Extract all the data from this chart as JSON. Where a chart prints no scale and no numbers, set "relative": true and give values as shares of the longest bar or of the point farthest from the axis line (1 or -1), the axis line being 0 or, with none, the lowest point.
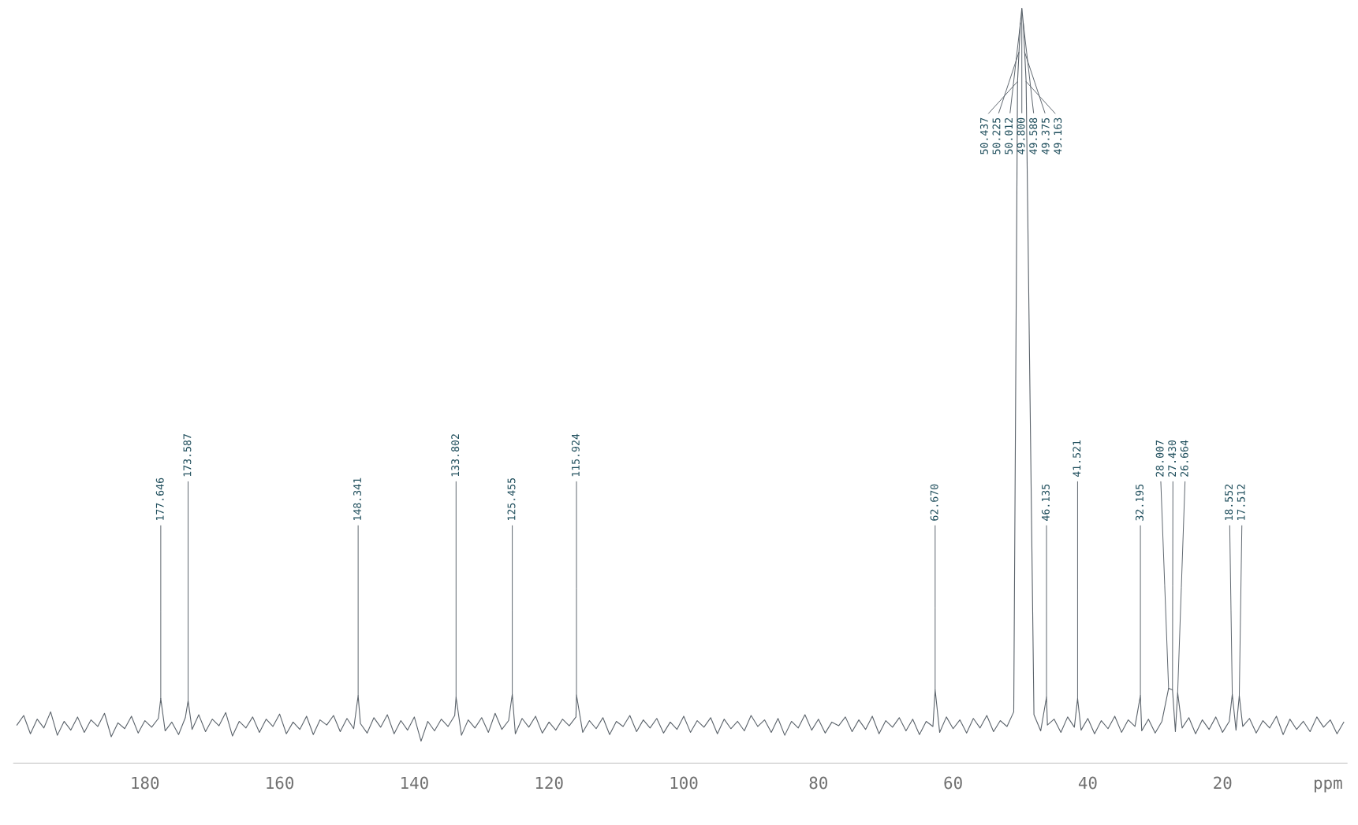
{
  "chart_data": {
    "type": "line",
    "relative": true,
    "xlabel": "ppm",
    "xlim": [
      199.5,
      1.5
    ],
    "xticks": [
      180,
      160,
      140,
      120,
      100,
      80,
      60,
      40,
      20
    ],
    "tick_labels": "x",
    "grid": false,
    "marker": "none",
    "line_style": "solid",
    "series": [
      {
        "color": "#5b636b",
        "x": [
          199,
          198,
          197,
          196,
          195,
          194,
          193,
          192,
          191,
          190,
          189,
          188,
          187,
          186,
          185,
          184,
          183,
          182,
          181,
          180,
          179,
          178,
          177.646,
          177,
          176,
          175,
          174,
          173.587,
          173,
          172,
          171,
          170,
          169,
          168,
          167,
          166,
          165,
          164,
          163,
          162,
          161,
          160,
          159,
          158,
          157,
          156,
          155,
          154,
          153,
          152,
          151,
          150,
          149,
          148.341,
          148,
          147,
          146,
          145,
          144,
          143,
          142,
          141,
          140,
          139,
          138,
          137,
          136,
          135,
          134,
          133.802,
          133,
          132,
          131,
          130,
          129,
          128,
          127,
          126,
          125.455,
          125,
          124,
          123,
          122,
          121,
          120,
          119,
          118,
          117,
          116,
          115.924,
          115,
          114,
          113,
          112,
          111,
          110,
          109,
          108,
          107,
          106,
          105,
          104,
          103,
          102,
          101,
          100,
          99,
          98,
          97,
          96,
          95,
          94,
          93,
          92,
          91,
          90,
          89,
          88,
          87,
          86,
          85,
          84,
          83,
          82,
          81,
          80,
          79,
          78,
          77,
          76,
          75,
          74,
          73,
          72,
          71,
          70,
          69,
          68,
          67,
          66,
          65,
          64,
          63,
          62.67,
          62,
          61,
          60,
          59,
          58,
          57,
          56,
          55,
          54,
          53,
          52,
          51,
          50.437,
          50.225,
          50.012,
          49.8,
          49.588,
          49.375,
          49.163,
          48,
          47,
          46.135,
          46,
          45,
          44,
          43,
          42,
          41.521,
          41,
          40,
          39,
          38,
          37,
          36,
          35,
          34,
          33,
          32.195,
          32,
          31,
          30,
          29,
          28.007,
          27.43,
          27,
          26.664,
          26,
          25,
          24,
          23,
          22,
          21,
          20,
          19,
          18.552,
          18,
          17.512,
          17,
          16,
          15,
          14,
          13,
          12,
          11,
          10,
          9,
          8,
          7,
          6,
          5,
          4,
          3,
          2
        ],
        "values": [
          0.022,
          0.035,
          0.01,
          0.03,
          0.018,
          0.04,
          0.008,
          0.027,
          0.015,
          0.033,
          0.012,
          0.029,
          0.02,
          0.038,
          0.006,
          0.025,
          0.017,
          0.034,
          0.011,
          0.028,
          0.019,
          0.031,
          0.058,
          0.014,
          0.026,
          0.009,
          0.032,
          0.055,
          0.016,
          0.036,
          0.013,
          0.03,
          0.021,
          0.039,
          0.007,
          0.027,
          0.018,
          0.033,
          0.012,
          0.03,
          0.02,
          0.037,
          0.01,
          0.026,
          0.016,
          0.034,
          0.009,
          0.029,
          0.022,
          0.035,
          0.013,
          0.031,
          0.017,
          0.062,
          0.024,
          0.011,
          0.032,
          0.019,
          0.036,
          0.01,
          0.028,
          0.015,
          0.033,
          0.0,
          0.027,
          0.014,
          0.03,
          0.02,
          0.035,
          0.06,
          0.008,
          0.029,
          0.018,
          0.032,
          0.012,
          0.038,
          0.016,
          0.028,
          0.064,
          0.01,
          0.031,
          0.019,
          0.034,
          0.011,
          0.026,
          0.015,
          0.03,
          0.021,
          0.033,
          0.063,
          0.012,
          0.028,
          0.017,
          0.032,
          0.009,
          0.027,
          0.02,
          0.035,
          0.013,
          0.029,
          0.018,
          0.031,
          0.011,
          0.026,
          0.016,
          0.034,
          0.012,
          0.028,
          0.019,
          0.032,
          0.01,
          0.03,
          0.017,
          0.027,
          0.014,
          0.035,
          0.02,
          0.029,
          0.012,
          0.031,
          0.008,
          0.027,
          0.018,
          0.036,
          0.015,
          0.03,
          0.011,
          0.026,
          0.021,
          0.033,
          0.013,
          0.029,
          0.016,
          0.034,
          0.01,
          0.028,
          0.019,
          0.032,
          0.014,
          0.03,
          0.009,
          0.027,
          0.02,
          0.07,
          0.012,
          0.033,
          0.017,
          0.029,
          0.011,
          0.031,
          0.018,
          0.035,
          0.013,
          0.028,
          0.02,
          0.04,
          0.9,
          0.94,
          0.98,
          1.0,
          0.98,
          0.94,
          0.9,
          0.036,
          0.014,
          0.06,
          0.022,
          0.03,
          0.012,
          0.033,
          0.019,
          0.058,
          0.015,
          0.031,
          0.01,
          0.028,
          0.017,
          0.034,
          0.012,
          0.029,
          0.02,
          0.062,
          0.014,
          0.03,
          0.011,
          0.027,
          0.072,
          0.07,
          0.013,
          0.066,
          0.018,
          0.032,
          0.01,
          0.029,
          0.016,
          0.033,
          0.012,
          0.027,
          0.064,
          0.015,
          0.062,
          0.02,
          0.031,
          0.011,
          0.028,
          0.018,
          0.034,
          0.009,
          0.03,
          0.016,
          0.027,
          0.013,
          0.033,
          0.019,
          0.029,
          0.01,
          0.026
        ]
      }
    ],
    "annotations": [
      {
        "text": "177.646",
        "x": 177.646,
        "y": 0.058
      },
      {
        "text": "173.587",
        "x": 173.587,
        "y": 0.055
      },
      {
        "text": "148.341",
        "x": 148.341,
        "y": 0.062
      },
      {
        "text": "133.802",
        "x": 133.802,
        "y": 0.06
      },
      {
        "text": "125.455",
        "x": 125.455,
        "y": 0.064
      },
      {
        "text": "115.924",
        "x": 115.924,
        "y": 0.063
      },
      {
        "text": "62.670",
        "x": 62.67,
        "y": 0.07
      },
      {
        "text": "50.437",
        "x": 50.437,
        "y": 0.9
      },
      {
        "text": "50.225",
        "x": 50.225,
        "y": 0.94
      },
      {
        "text": "50.012",
        "x": 50.012,
        "y": 0.98
      },
      {
        "text": "49.800",
        "x": 49.8,
        "y": 1.0
      },
      {
        "text": "49.588",
        "x": 49.588,
        "y": 0.98
      },
      {
        "text": "49.375",
        "x": 49.375,
        "y": 0.94
      },
      {
        "text": "49.163",
        "x": 49.163,
        "y": 0.9
      },
      {
        "text": "46.135",
        "x": 46.135,
        "y": 0.06
      },
      {
        "text": "41.521",
        "x": 41.521,
        "y": 0.058
      },
      {
        "text": "32.195",
        "x": 32.195,
        "y": 0.062
      },
      {
        "text": "28.007",
        "x": 28.007,
        "y": 0.072
      },
      {
        "text": "27.430",
        "x": 27.43,
        "y": 0.07
      },
      {
        "text": "26.664",
        "x": 26.664,
        "y": 0.066
      },
      {
        "text": "18.552",
        "x": 18.552,
        "y": 0.064
      },
      {
        "text": "17.512",
        "x": 17.512,
        "y": 0.062
      }
    ]
  }
}
